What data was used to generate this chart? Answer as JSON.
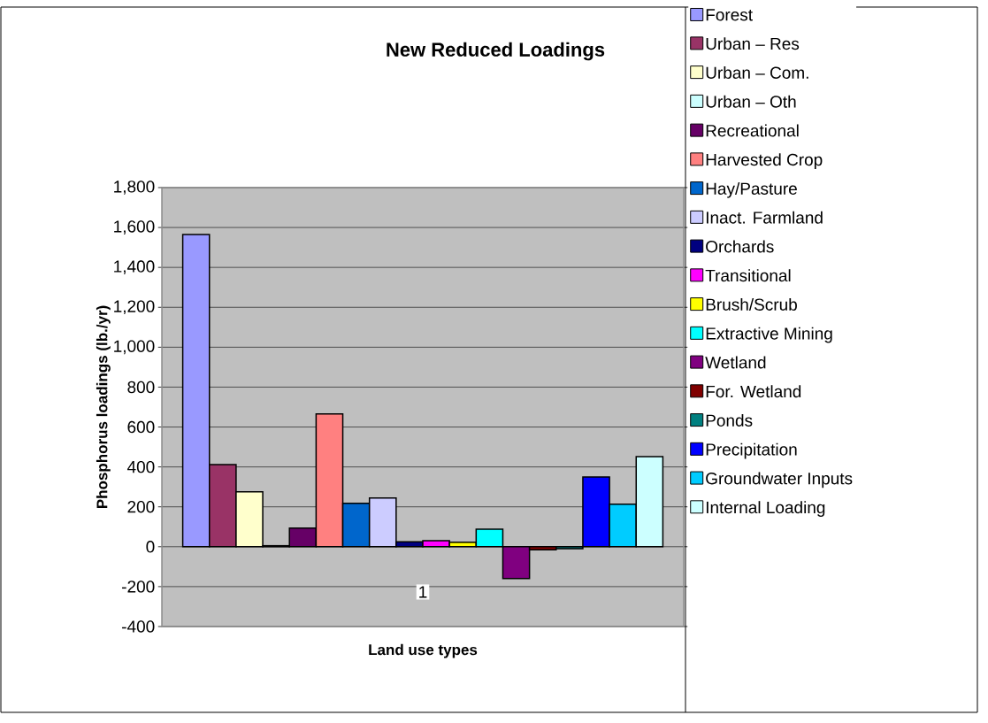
{
  "chart_data": {
    "type": "bar",
    "title": "New Reduced Loadings",
    "xlabel": "Land use types",
    "ylabel": "Phosphorus loadings (lb./yr)",
    "categories": [
      "1"
    ],
    "series": [
      {
        "name": "Forest",
        "color": "#9999ff",
        "values": [
          1565
        ]
      },
      {
        "name": "Urban – Res",
        "color": "#993366",
        "values": [
          412
        ]
      },
      {
        "name": "Urban – Com.",
        "color": "#ffffcc",
        "values": [
          275
        ]
      },
      {
        "name": "Urban – Oth",
        "color": "#ccffff",
        "values": [
          5
        ]
      },
      {
        "name": "Recreational",
        "color": "#660066",
        "values": [
          93
        ]
      },
      {
        "name": "Harvested Crop",
        "color": "#ff8080",
        "values": [
          665
        ]
      },
      {
        "name": "Hay/Pasture",
        "color": "#0066cc",
        "values": [
          217
        ]
      },
      {
        "name": "Inact. Farmland",
        "color": "#ccccff",
        "values": [
          244
        ]
      },
      {
        "name": "Orchards",
        "color": "#000080",
        "values": [
          25
        ]
      },
      {
        "name": "Transitional",
        "color": "#ff00ff",
        "values": [
          30
        ]
      },
      {
        "name": "Brush/Scrub",
        "color": "#ffff00",
        "values": [
          22
        ]
      },
      {
        "name": "Extractive Mining",
        "color": "#00ffff",
        "values": [
          88
        ]
      },
      {
        "name": "Wetland",
        "color": "#800080",
        "values": [
          -160
        ]
      },
      {
        "name": "For. Wetland",
        "color": "#800000",
        "values": [
          -15
        ]
      },
      {
        "name": "Ponds",
        "color": "#008080",
        "values": [
          -10
        ]
      },
      {
        "name": "Precipitation",
        "color": "#0000ff",
        "values": [
          350
        ]
      },
      {
        "name": "Groundwater Inputs",
        "color": "#00ccff",
        "values": [
          213
        ]
      },
      {
        "name": "Internal Loading",
        "color": "#ccffff",
        "values": [
          452
        ]
      }
    ],
    "ylim": [
      -400,
      1800
    ],
    "yticks": [
      {
        "value": -400,
        "label": "-400"
      },
      {
        "value": -200,
        "label": "-200"
      },
      0,
      200,
      400,
      600,
      800,
      {
        "value": 1000,
        "label": "1,000"
      },
      {
        "value": 1200,
        "label": "1,200"
      },
      {
        "value": 1400,
        "label": "1,400"
      },
      {
        "value": 1600,
        "label": "1,600"
      },
      {
        "value": 1800,
        "label": "1,800"
      }
    ],
    "grid": "y",
    "legend": "right"
  }
}
